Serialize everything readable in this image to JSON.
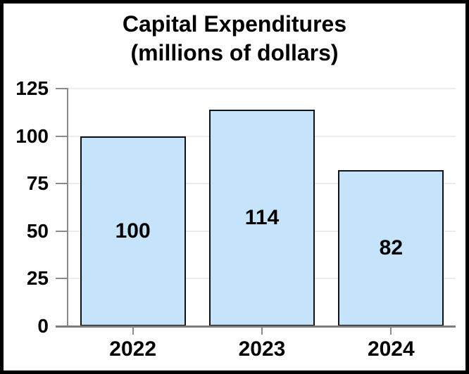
{
  "title": {
    "line1": "Capital Expenditures",
    "line2": "(millions of dollars)"
  },
  "chart_data": {
    "type": "bar",
    "title": "Capital Expenditures (millions of dollars)",
    "categories": [
      "2022",
      "2023",
      "2024"
    ],
    "values": [
      100,
      114,
      82
    ],
    "bar_value_labels": [
      "100",
      "114",
      "82"
    ],
    "xlabel": "",
    "ylabel": "",
    "ylim": [
      0,
      125
    ],
    "yticks": [
      0,
      25,
      50,
      75,
      100,
      125
    ],
    "ytick_labels": [
      "0",
      "25",
      "50",
      "75",
      "100",
      "125"
    ],
    "grid": true,
    "legend": "none",
    "colors": {
      "bar_fill": "#c5e3fa",
      "bar_border": "#111111",
      "axis_line": "#8a8a8a",
      "baseline": "#7d7d7d",
      "gridline": "#ececec",
      "text": "#000000",
      "frame_border": "#000000",
      "background": "#ffffff"
    }
  }
}
